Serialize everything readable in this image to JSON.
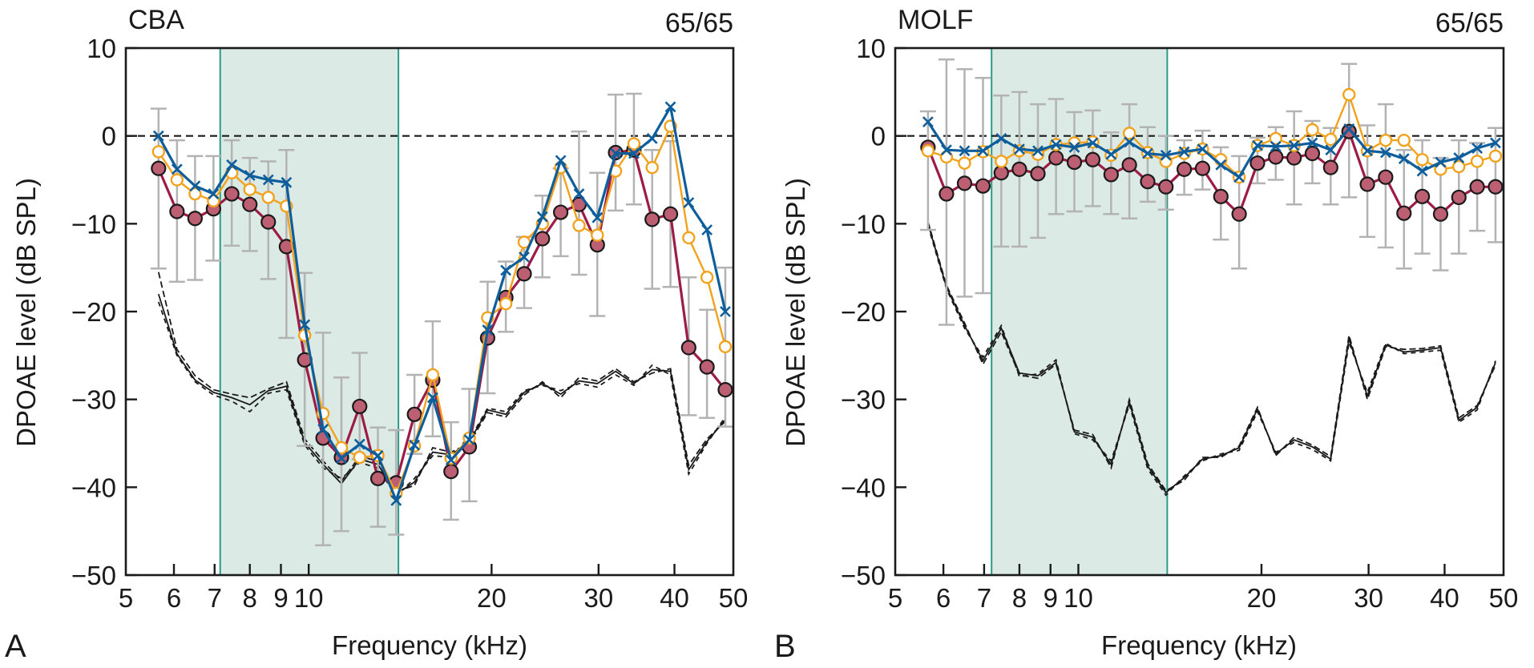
{
  "chart_data": [
    {
      "type": "line",
      "panel_letter": "A",
      "title": "CBA",
      "condition_label": "65/65",
      "xlabel": "Frequency (kHz)",
      "ylabel": "DPOAE level (dB SPL)",
      "xscale": "log",
      "xlim": [
        5,
        50
      ],
      "ylim": [
        -50,
        10
      ],
      "xticks": [
        5,
        6,
        7,
        8,
        9,
        10,
        20,
        30,
        40,
        50
      ],
      "xtick_labels": [
        "5",
        "6",
        "7",
        "8",
        "9",
        "10",
        "20",
        "30",
        "40",
        "50"
      ],
      "yticks": [
        10,
        0,
        -10,
        -20,
        -30,
        -40,
        -50
      ],
      "ytick_labels": [
        "10",
        "0",
        "−10",
        "−20",
        "−30",
        "−40",
        "−50"
      ],
      "reference_line_y": 0,
      "shaded_region_khz": [
        7.15,
        14.05
      ],
      "colors": {
        "series_x": "#0f5e9c",
        "series_open": "#f2a21c",
        "series_filled_line": "#9c1c45",
        "series_filled_marker": "#bd5f72",
        "errorbar": "#b3b3b3",
        "shade": "#dbeae5",
        "shade_edge": "#2a9c84",
        "noise": "#1a1a1a"
      },
      "frequencies_khz": [
        5.66,
        6.07,
        6.5,
        6.97,
        7.47,
        8.0,
        8.58,
        9.19,
        9.85,
        10.56,
        11.32,
        12.13,
        13.0,
        13.93,
        14.93,
        16.0,
        17.15,
        18.38,
        19.7,
        21.11,
        22.63,
        24.25,
        25.99,
        27.86,
        29.86,
        32.0,
        34.3,
        36.76,
        39.4,
        42.22,
        45.25,
        48.5
      ],
      "series": [
        {
          "name": "filled-circle",
          "marker": "filled-circle",
          "values": [
            -3.7,
            -8.6,
            -9.4,
            -8.3,
            -6.6,
            -7.8,
            -9.8,
            -12.6,
            -25.5,
            -34.4,
            -36.6,
            -30.8,
            -39.0,
            -39.5,
            -31.7,
            -27.8,
            -38.2,
            -35.4,
            -23.0,
            -18.4,
            -15.7,
            -11.7,
            -8.7,
            -7.8,
            -12.4,
            -1.9,
            -1.6,
            -9.5,
            -8.9,
            -24.1,
            -26.3,
            -28.9
          ],
          "err_upper": [
            3.1,
            -0.5,
            -2.3,
            -2.3,
            -0.5,
            -2.5,
            -2.9,
            -1.6,
            -15.6,
            -22.4,
            -27.5,
            -24.7,
            -33.2,
            -33.5,
            -27.2,
            -21.1,
            -32.6,
            -28.8,
            -16.6,
            -14.3,
            -11.5,
            -6.8,
            -3.7,
            0.5,
            -4.2,
            4.7,
            4.8,
            -1.6,
            -0.6,
            -16.1,
            -19.8,
            -15.0
          ],
          "err_lower": [
            -15.1,
            -16.6,
            -16.4,
            -14.2,
            -12.5,
            -13.1,
            -16.3,
            -23.0,
            -35.3,
            -46.6,
            -45.0,
            -36.8,
            -44.5,
            -45.4,
            -36.2,
            -34.2,
            -43.7,
            -41.6,
            -29.3,
            -22.3,
            -19.6,
            -16.1,
            -13.7,
            -15.8,
            -20.5,
            -8.5,
            -7.8,
            -17.4,
            -17.2,
            -31.8,
            -32.1,
            -33.1
          ]
        },
        {
          "name": "open-circle",
          "marker": "open-circle",
          "values": [
            -1.8,
            -5.0,
            -6.6,
            -7.4,
            -4.2,
            -6.1,
            -7.0,
            -8.0,
            -22.7,
            -31.6,
            -35.5,
            -36.6,
            -36.4,
            -40.7,
            -35.3,
            -27.2,
            -36.7,
            -34.4,
            -20.7,
            -19.1,
            -12.1,
            -10.0,
            -3.6,
            -10.2,
            -11.3,
            -4.0,
            -0.9,
            -3.6,
            1.1,
            -11.6,
            -16.1,
            -24.0
          ]
        },
        {
          "name": "cross",
          "marker": "x",
          "values": [
            0.0,
            -3.8,
            -5.7,
            -6.6,
            -3.3,
            -4.5,
            -5.0,
            -5.3,
            -21.5,
            -33.4,
            -36.7,
            -35.1,
            -36.4,
            -41.5,
            -35.2,
            -29.8,
            -36.9,
            -34.6,
            -22.1,
            -15.3,
            -13.8,
            -9.2,
            -2.8,
            -6.6,
            -9.3,
            -2.0,
            -2.0,
            -0.3,
            3.3,
            -7.6,
            -10.7,
            -20.0
          ]
        }
      ],
      "noise_floor": [
        {
          "name": "noise-floor-1",
          "values": [
            -15.5,
            -24.3,
            -27.3,
            -28.9,
            -29.4,
            -29.8,
            -28.8,
            -28.0,
            -34.5,
            -37.0,
            -39.3,
            -36.5,
            -37.0,
            -40.5,
            -39.8,
            -35.5,
            -36.0,
            -35.0,
            -31.5,
            -32.0,
            -29.5,
            -28.0,
            -29.8,
            -27.5,
            -27.9,
            -26.5,
            -28.0,
            -27.0,
            -26.5,
            -37.5,
            -34.5,
            -32.5
          ]
        },
        {
          "name": "noise-floor-2",
          "values": [
            -18.9,
            -25.0,
            -28.0,
            -29.5,
            -30.2,
            -31.4,
            -29.3,
            -28.9,
            -35.2,
            -37.8,
            -39.0,
            -37.2,
            -37.8,
            -41.0,
            -39.0,
            -36.4,
            -36.6,
            -34.6,
            -31.0,
            -31.4,
            -29.0,
            -28.4,
            -29.0,
            -28.2,
            -28.6,
            -27.2,
            -28.4,
            -26.1,
            -27.2,
            -38.5,
            -35.0,
            -32.0
          ]
        },
        {
          "name": "noise-floor-3",
          "values": [
            -18.0,
            -24.8,
            -27.8,
            -29.2,
            -29.8,
            -30.6,
            -29.0,
            -28.5,
            -34.9,
            -37.4,
            -39.6,
            -36.8,
            -37.4,
            -40.8,
            -39.4,
            -36.0,
            -36.3,
            -34.8,
            -31.2,
            -31.7,
            -29.2,
            -28.2,
            -29.4,
            -27.9,
            -28.2,
            -26.8,
            -28.2,
            -26.6,
            -26.8,
            -38.0,
            -34.8,
            -32.3
          ]
        }
      ]
    },
    {
      "type": "line",
      "panel_letter": "B",
      "title": "MOLF",
      "condition_label": "65/65",
      "xlabel": "Frequency (kHz)",
      "ylabel": "DPOAE level (dB SPL)",
      "xscale": "log",
      "xlim": [
        5,
        50
      ],
      "ylim": [
        -50,
        10
      ],
      "xticks": [
        5,
        6,
        7,
        8,
        9,
        10,
        20,
        30,
        40,
        50
      ],
      "xtick_labels": [
        "5",
        "6",
        "7",
        "8",
        "9",
        "10",
        "20",
        "30",
        "40",
        "50"
      ],
      "yticks": [
        10,
        0,
        -10,
        -20,
        -30,
        -40,
        -50
      ],
      "ytick_labels": [
        "10",
        "0",
        "−10",
        "−20",
        "−30",
        "−40",
        "−50"
      ],
      "reference_line_y": 0,
      "shaded_region_khz": [
        7.2,
        14.0
      ],
      "colors": {
        "series_x": "#0f5e9c",
        "series_open": "#f2a21c",
        "series_filled_line": "#9c1c45",
        "series_filled_marker": "#bd5f72",
        "errorbar": "#b3b3b3",
        "shade": "#dbeae5",
        "shade_edge": "#2a9c84",
        "noise": "#1a1a1a"
      },
      "frequencies_khz": [
        5.66,
        6.07,
        6.5,
        6.97,
        7.47,
        8.0,
        8.58,
        9.19,
        9.85,
        10.56,
        11.32,
        12.13,
        13.0,
        13.93,
        14.93,
        16.0,
        17.15,
        18.38,
        19.7,
        21.11,
        22.63,
        24.25,
        25.99,
        27.86,
        29.86,
        32.0,
        34.3,
        36.76,
        39.4,
        42.22,
        45.25,
        48.5
      ],
      "series": [
        {
          "name": "filled-circle",
          "marker": "filled-circle",
          "values": [
            -1.3,
            -6.6,
            -5.4,
            -5.7,
            -4.2,
            -3.8,
            -4.3,
            -2.5,
            -3.0,
            -2.7,
            -4.4,
            -3.3,
            -5.2,
            -5.8,
            -3.8,
            -3.7,
            -6.9,
            -8.9,
            -3.1,
            -2.4,
            -2.5,
            -2.0,
            -3.6,
            0.5,
            -5.5,
            -4.7,
            -8.8,
            -6.9,
            -8.9,
            -7.0,
            -5.8,
            -5.8
          ],
          "err_upper": [
            2.8,
            8.7,
            7.6,
            6.6,
            4.6,
            5.0,
            3.6,
            4.2,
            2.7,
            2.9,
            0.4,
            3.6,
            1.0,
            0.0,
            -0.5,
            0.6,
            -1.3,
            -2.3,
            -0.2,
            1.0,
            2.8,
            1.7,
            0.9,
            8.2,
            1.2,
            3.6,
            -1.6,
            -0.5,
            -2.5,
            -0.5,
            -0.8,
            0.9
          ],
          "err_lower": [
            -10.7,
            -21.5,
            -18.3,
            -17.9,
            -12.6,
            -12.6,
            -11.6,
            -8.9,
            -8.6,
            -8.0,
            -8.9,
            -9.4,
            -7.5,
            -8.4,
            -6.7,
            -6.1,
            -11.8,
            -15.1,
            -5.4,
            -5.0,
            -7.8,
            -5.4,
            -7.8,
            -7.0,
            -11.5,
            -12.7,
            -15.1,
            -13.4,
            -15.3,
            -13.4,
            -10.8,
            -12.1
          ]
        },
        {
          "name": "open-circle",
          "marker": "open-circle",
          "values": [
            -1.7,
            -2.4,
            -3.1,
            -1.8,
            -2.9,
            -1.7,
            -2.1,
            -1.0,
            -0.8,
            -0.7,
            -2.2,
            0.3,
            -1.9,
            -2.9,
            -2.0,
            -1.5,
            -2.7,
            -4.7,
            -1.1,
            -0.3,
            -1.1,
            0.7,
            -0.4,
            4.7,
            -1.7,
            -0.5,
            -0.5,
            -2.7,
            -3.8,
            -3.5,
            -2.9,
            -2.3
          ]
        },
        {
          "name": "cross",
          "marker": "x",
          "values": [
            1.6,
            -1.6,
            -1.7,
            -1.7,
            -0.3,
            -1.5,
            -1.7,
            -1.0,
            -1.3,
            -0.8,
            -2.1,
            -0.7,
            -2.0,
            -2.2,
            -1.8,
            -1.5,
            -3.3,
            -4.7,
            -1.1,
            -1.2,
            -1.1,
            -0.8,
            -1.6,
            0.8,
            -1.7,
            -1.9,
            -2.6,
            -4.0,
            -3.0,
            -2.5,
            -1.4,
            -0.8
          ]
        }
      ],
      "noise_floor": [
        {
          "name": "noise-floor-1",
          "values": [
            -9.8,
            -17.0,
            -21.3,
            -26.0,
            -22.3,
            -27.2,
            -27.6,
            -26.0,
            -33.5,
            -34.0,
            -37.8,
            -30.0,
            -37.3,
            -40.4,
            -39.2,
            -36.6,
            -36.6,
            -35.3,
            -30.9,
            -36.4,
            -34.3,
            -35.2,
            -36.5,
            -22.7,
            -30.0,
            -24.0,
            -24.3,
            -24.2,
            -23.9,
            -32.1,
            -30.7,
            -26.1
          ]
        },
        {
          "name": "noise-floor-2",
          "values": [
            -10.2,
            -17.4,
            -21.9,
            -25.2,
            -21.6,
            -27.4,
            -27.1,
            -25.5,
            -33.9,
            -34.6,
            -37.0,
            -30.6,
            -37.9,
            -40.9,
            -38.7,
            -37.0,
            -36.2,
            -35.8,
            -31.4,
            -36.0,
            -34.9,
            -35.7,
            -37.0,
            -23.5,
            -29.2,
            -23.6,
            -24.8,
            -24.6,
            -24.4,
            -32.6,
            -31.2,
            -25.6
          ]
        },
        {
          "name": "noise-floor-3",
          "values": [
            -10.0,
            -17.2,
            -21.6,
            -25.6,
            -21.9,
            -27.0,
            -27.3,
            -25.8,
            -33.7,
            -34.3,
            -37.4,
            -30.3,
            -37.6,
            -40.6,
            -38.9,
            -36.8,
            -36.4,
            -35.5,
            -31.1,
            -36.2,
            -34.6,
            -35.4,
            -36.8,
            -23.1,
            -29.6,
            -23.8,
            -24.6,
            -24.4,
            -24.1,
            -32.4,
            -30.9,
            -25.8
          ]
        }
      ]
    }
  ]
}
